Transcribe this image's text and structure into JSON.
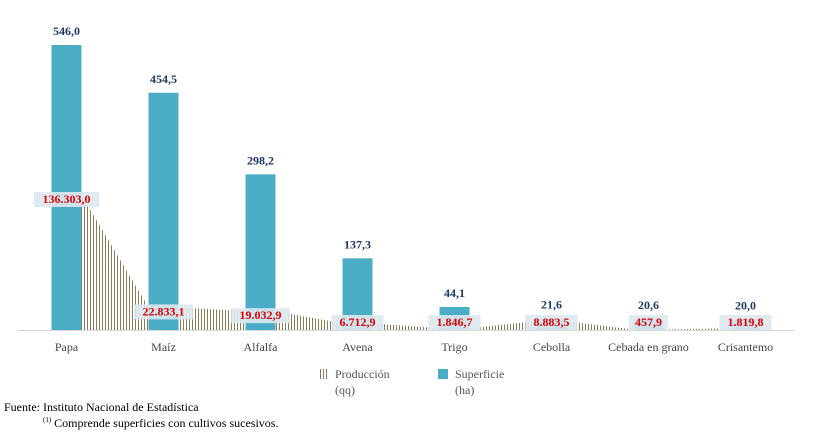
{
  "chart_data": {
    "type": "bar",
    "categories": [
      "Papa",
      "Maíz",
      "Alfalfa",
      "Avena",
      "Trigo",
      "Cebolla",
      "Cebada en grano",
      "Crisantemo"
    ],
    "series": [
      {
        "name": "Superficie",
        "unit": "(ha)",
        "type": "bar",
        "color": "#4bacc6",
        "values": [
          546.0,
          454.5,
          298.2,
          137.3,
          44.1,
          21.6,
          20.6,
          20.0
        ],
        "labels": [
          "546,0",
          "454,5",
          "298,2",
          "137,3",
          "44,1",
          "21,6",
          "20,6",
          "20,0"
        ],
        "label_color": "#1f3864"
      },
      {
        "name": "Producción",
        "unit": "(qq)",
        "type": "area",
        "color": "#8a7a55",
        "values": [
          136303.0,
          22833.1,
          19032.9,
          6712.9,
          1846.7,
          8883.5,
          457.9,
          1819.8
        ],
        "labels": [
          "136.303,0",
          "22.833,1",
          "19.032,9",
          "6.712,9",
          "1.846,7",
          "8.883,5",
          "457,9",
          "1.819,8"
        ],
        "label_color": "#e00000"
      }
    ],
    "legend_position": "bottom",
    "grid": false
  },
  "source": "Fuente: Instituto Nacional de Estadística",
  "footnote_mark": "(1)",
  "footnote_text": " Comprende superficies con cultivos sucesivos."
}
